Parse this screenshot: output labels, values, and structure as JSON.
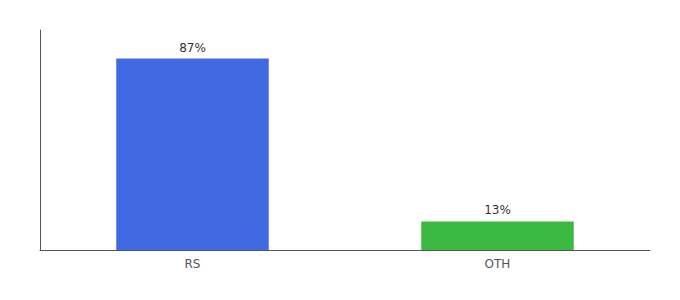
{
  "chart_data": {
    "type": "bar",
    "categories": [
      "RS",
      "OTH"
    ],
    "values": [
      87,
      13
    ],
    "value_labels": [
      "87%",
      "13%"
    ],
    "colors": [
      "#4169E1",
      "#3CB940"
    ],
    "ylim": [
      0,
      100
    ],
    "grid": false,
    "data_labels": true,
    "tick_labels": "x"
  }
}
